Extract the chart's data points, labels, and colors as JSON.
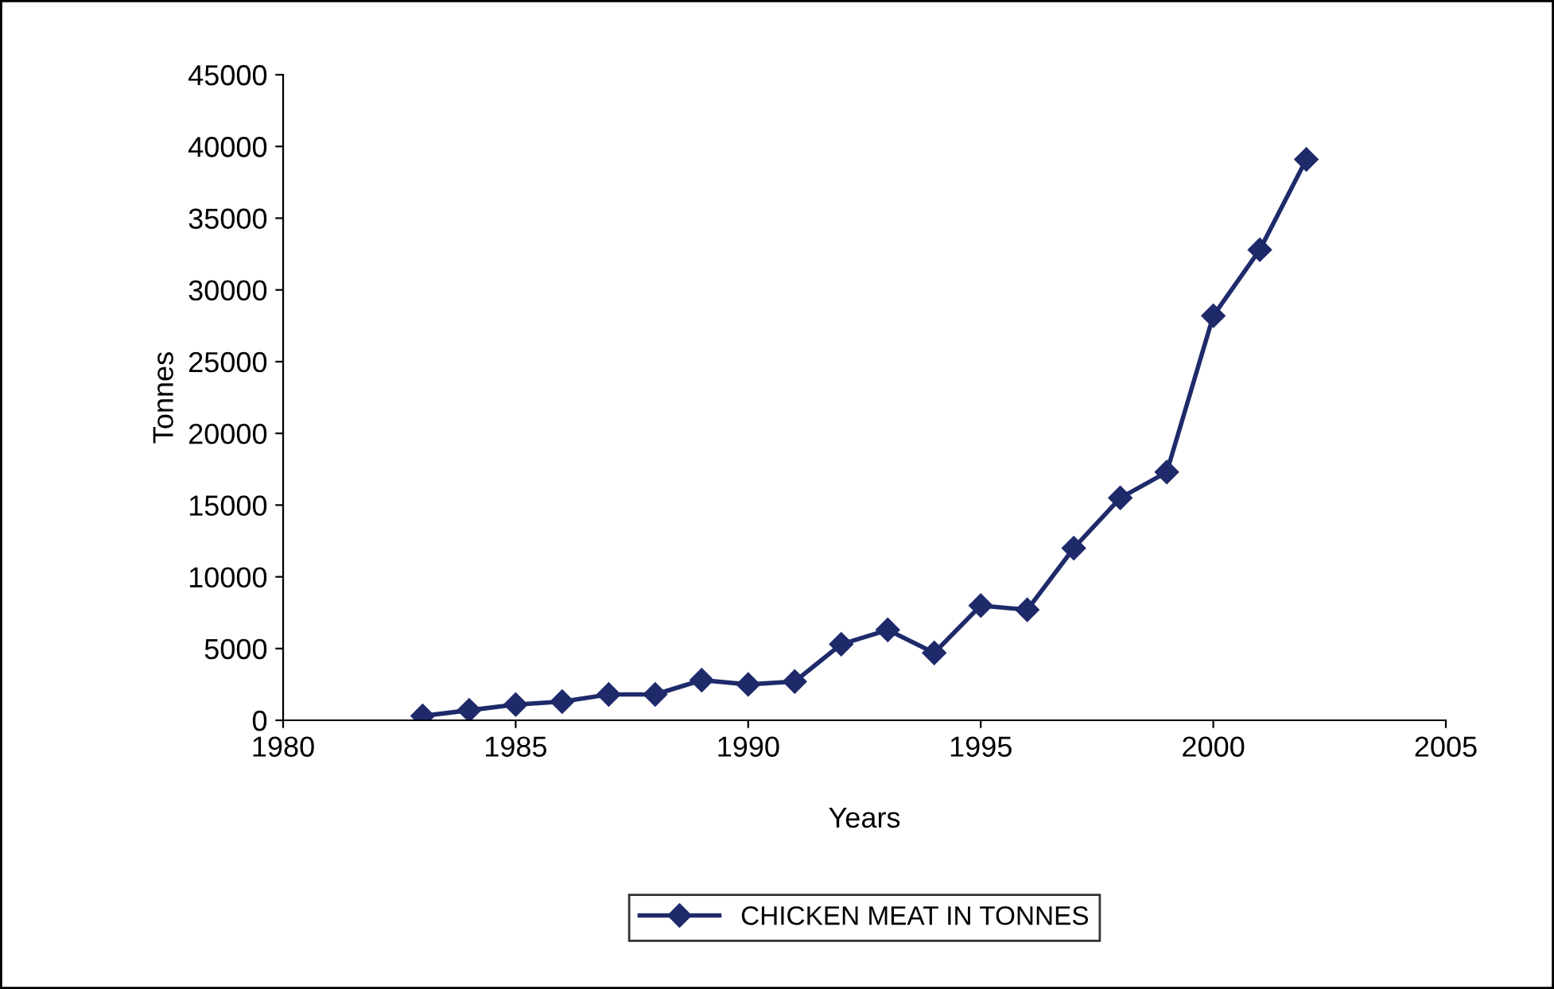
{
  "chart_data": {
    "type": "line",
    "xlabel": "Years",
    "ylabel": "Tonnes",
    "x": [
      1983,
      1984,
      1985,
      1986,
      1987,
      1988,
      1989,
      1990,
      1991,
      1992,
      1993,
      1994,
      1995,
      1996,
      1997,
      1998,
      1999,
      2000,
      2001,
      2002
    ],
    "series": [
      {
        "name": "CHICKEN MEAT IN TONNES",
        "color": "#1f2a6b",
        "values": [
          300,
          700,
          1100,
          1300,
          1800,
          1800,
          2800,
          2500,
          2700,
          5300,
          6300,
          4700,
          8000,
          7700,
          12000,
          15500,
          17300,
          28200,
          32800,
          39100
        ]
      }
    ],
    "xlim": [
      1980,
      2005
    ],
    "xticks": [
      1980,
      1985,
      1990,
      1995,
      2000,
      2005
    ],
    "ylim": [
      0,
      45000
    ],
    "yticks": [
      0,
      5000,
      10000,
      15000,
      20000,
      25000,
      30000,
      35000,
      40000,
      45000
    ],
    "grid": false,
    "legend": "bottom",
    "marker": "diamond",
    "line_style": "solid"
  }
}
